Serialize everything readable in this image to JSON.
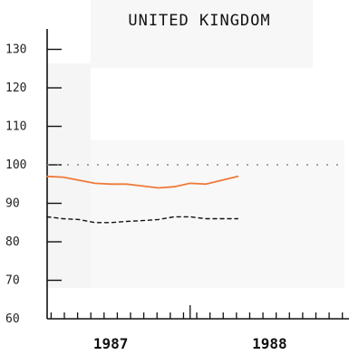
{
  "chart_data": {
    "type": "line",
    "title": "UNITED KINGDOM",
    "xlabel": "",
    "ylabel": "",
    "x_range": [
      1986.6,
      1988.5
    ],
    "ylim": [
      60,
      135
    ],
    "y_ticks": [
      60,
      70,
      80,
      90,
      100,
      110,
      120,
      130
    ],
    "x_ticks": [
      {
        "label": "1987",
        "value": 1987.0
      },
      {
        "label": "1988",
        "value": 1988.0
      }
    ],
    "grid": false,
    "reference_line": {
      "y": 100,
      "style": "dotted",
      "color": "#888888"
    },
    "series": [
      {
        "style": "solid",
        "color": "#ee7a3a",
        "x": [
          1986.6,
          1986.7,
          1986.8,
          1986.9,
          1987.0,
          1987.1,
          1987.2,
          1987.3,
          1987.4,
          1987.5,
          1987.6,
          1987.7,
          1987.8
        ],
        "y": [
          97,
          96.8,
          96,
          95.2,
          95,
          95,
          94.5,
          94,
          94.3,
          95.2,
          95,
          96,
          97
        ]
      },
      {
        "style": "dashed",
        "color": "#111111",
        "x": [
          1986.6,
          1986.7,
          1986.8,
          1986.9,
          1987.0,
          1987.1,
          1987.2,
          1987.3,
          1987.4,
          1987.5,
          1987.6,
          1987.7,
          1987.8
        ],
        "y": [
          86.5,
          86,
          85.8,
          85,
          85,
          85.3,
          85.5,
          85.8,
          86.5,
          86.5,
          86,
          86,
          86
        ]
      }
    ]
  }
}
